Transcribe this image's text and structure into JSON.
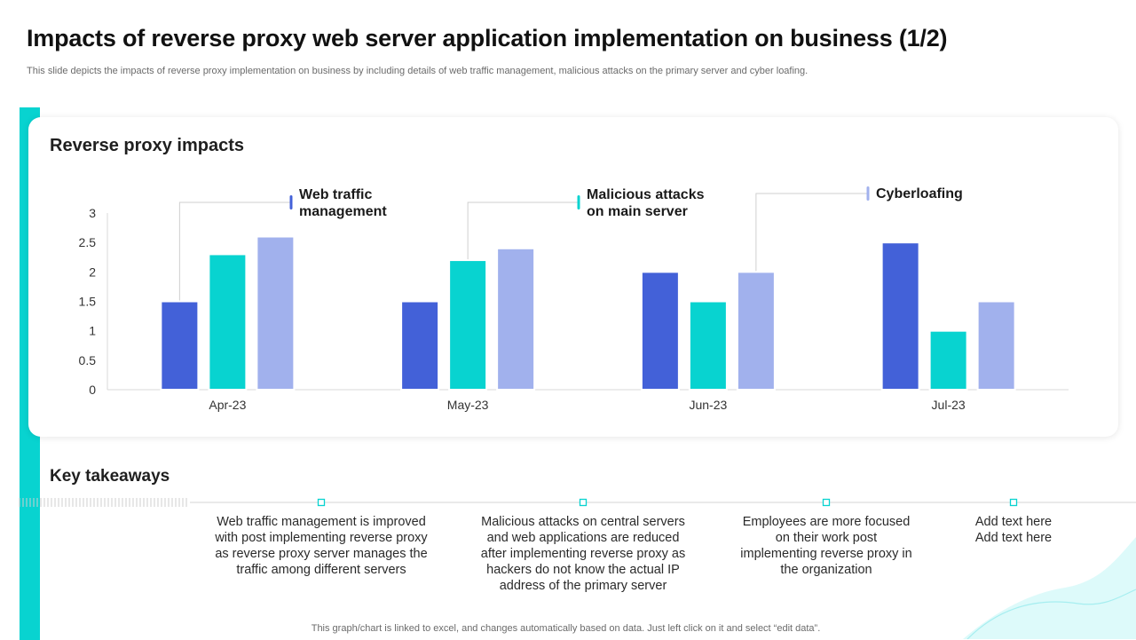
{
  "header": {
    "title": "Impacts of reverse proxy web server application implementation on business (1/2)",
    "subtitle": "This slide depicts the impacts of reverse proxy implementation on business by including details of web traffic management, malicious attacks on the primary server and cyber loafing."
  },
  "chart_card": {
    "title": "Reverse proxy impacts"
  },
  "chart_data": {
    "type": "bar",
    "title": "Reverse proxy impacts",
    "categories": [
      "Apr-23",
      "May-23",
      "Jun-23",
      "Jul-23"
    ],
    "series": [
      {
        "name": "Web traffic management",
        "color": "#4361d8",
        "values": [
          1.5,
          1.5,
          2.0,
          2.5
        ]
      },
      {
        "name": "Malicious attacks on main server",
        "color": "#08d3d0",
        "values": [
          2.3,
          2.2,
          1.5,
          1.0
        ]
      },
      {
        "name": "Cyberloafing",
        "color": "#a1b1ed",
        "values": [
          2.6,
          2.4,
          2.0,
          1.5
        ]
      }
    ],
    "ylim": [
      0,
      3
    ],
    "yticks": [
      "0",
      "0.5",
      "1",
      "1.5",
      "2",
      "2.5",
      "3"
    ],
    "xlabel": "",
    "ylabel": "",
    "grid": false
  },
  "callouts": {
    "web_traffic_line1": "Web traffic",
    "web_traffic_line2": "management",
    "malicious_line1": "Malicious attacks",
    "malicious_line2": "on main server",
    "cyberloafing": "Cyberloafing"
  },
  "takeaways": {
    "title": "Key takeaways",
    "items": [
      "Web traffic management is improved with post implementing reverse proxy as reverse proxy server manages the traffic among different servers",
      "Malicious attacks on central servers and web applications are reduced after implementing reverse proxy as hackers do not know the actual IP address of the primary server",
      "Employees are more focused on their work post implementing reverse proxy in the organization",
      "Add text here Add text here"
    ]
  },
  "footnote": "This graph/chart is linked to excel,  and changes automatically based on data. Just left click on it and select “edit data”.",
  "colors": {
    "accent_teal": "#08d3d0",
    "accent_blue": "#4361d8",
    "accent_lavender": "#a1b1ed"
  }
}
